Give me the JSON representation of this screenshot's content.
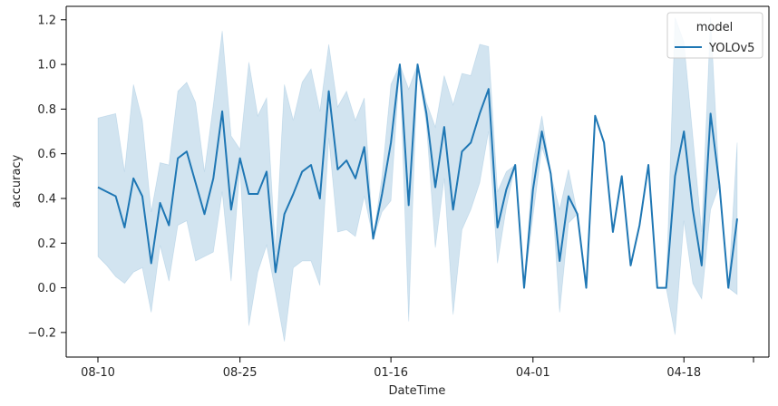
{
  "chart_data": {
    "type": "line",
    "title": "",
    "xlabel": "DateTime",
    "ylabel": "accuracy",
    "ylim": [
      -0.31,
      1.26
    ],
    "yticks": [
      -0.2,
      0.0,
      0.2,
      0.4,
      0.6,
      0.8,
      1.0,
      1.2
    ],
    "ytick_labels": [
      "−0.2",
      "0.0",
      "0.2",
      "0.4",
      "0.6",
      "0.8",
      "1.0",
      "1.2"
    ],
    "xtick_labels": [
      {
        "index": 0,
        "label": "08-10"
      },
      {
        "index": 16,
        "label": "08-25"
      },
      {
        "index": 33,
        "label": "01-16"
      },
      {
        "index": 49,
        "label": "04-01"
      },
      {
        "index": 66,
        "label": "04-18"
      }
    ],
    "legend": {
      "title": "model",
      "position": "top-right"
    },
    "color": "#1f77b4",
    "grid": false,
    "series": [
      {
        "name": "YOLOv5",
        "values": [
          0.45,
          0.43,
          0.41,
          0.27,
          0.49,
          0.41,
          0.11,
          0.38,
          0.28,
          0.58,
          0.61,
          0.47,
          0.33,
          0.49,
          0.79,
          0.35,
          0.58,
          0.42,
          0.42,
          0.52,
          0.07,
          0.33,
          0.42,
          0.52,
          0.55,
          0.4,
          0.88,
          0.53,
          0.57,
          0.49,
          0.63,
          0.22,
          0.42,
          0.65,
          1.0,
          0.37,
          1.0,
          0.78,
          0.45,
          0.72,
          0.35,
          0.61,
          0.65,
          0.78,
          0.89,
          0.27,
          0.44,
          0.55,
          0.0,
          0.44,
          0.7,
          0.51,
          0.12,
          0.41,
          0.33,
          0.0,
          0.77,
          0.65,
          0.25,
          0.5,
          0.1,
          0.28,
          0.55,
          0.0,
          0.0,
          0.5,
          0.7,
          0.35,
          0.1,
          0.78,
          0.46,
          0.0,
          0.31
        ],
        "ci_upper": [
          0.76,
          0.77,
          0.78,
          0.52,
          0.91,
          0.75,
          0.34,
          0.56,
          0.55,
          0.88,
          0.92,
          0.83,
          0.52,
          0.82,
          1.15,
          0.68,
          0.62,
          1.01,
          0.77,
          0.85,
          0.16,
          0.91,
          0.75,
          0.92,
          0.98,
          0.79,
          1.09,
          0.81,
          0.88,
          0.75,
          0.85,
          0.22,
          0.5,
          0.91,
          1.0,
          0.89,
          1.0,
          0.83,
          0.72,
          0.95,
          0.82,
          0.96,
          0.95,
          1.09,
          1.08,
          0.43,
          0.52,
          0.55,
          0.0,
          0.56,
          0.77,
          0.51,
          0.35,
          0.53,
          0.33,
          0.0,
          0.77,
          0.65,
          0.25,
          0.5,
          0.1,
          0.28,
          0.55,
          0.0,
          0.0,
          1.21,
          1.1,
          0.68,
          0.25,
          1.21,
          0.46,
          0.0,
          0.65
        ],
        "ci_lower": [
          0.14,
          0.1,
          0.05,
          0.02,
          0.07,
          0.09,
          -0.11,
          0.19,
          0.03,
          0.28,
          0.3,
          0.12,
          0.14,
          0.16,
          0.43,
          0.03,
          0.54,
          -0.17,
          0.07,
          0.19,
          -0.02,
          -0.24,
          0.09,
          0.12,
          0.12,
          0.01,
          0.67,
          0.25,
          0.26,
          0.23,
          0.41,
          0.22,
          0.34,
          0.39,
          1.0,
          -0.15,
          1.0,
          0.73,
          0.18,
          0.49,
          -0.12,
          0.26,
          0.35,
          0.47,
          0.7,
          0.11,
          0.36,
          0.55,
          0.0,
          0.32,
          0.63,
          0.51,
          -0.11,
          0.29,
          0.33,
          0.0,
          0.77,
          0.65,
          0.25,
          0.5,
          0.1,
          0.28,
          0.55,
          0.0,
          0.0,
          -0.21,
          0.3,
          0.02,
          -0.05,
          0.35,
          0.46,
          0.0,
          -0.03
        ]
      }
    ]
  }
}
